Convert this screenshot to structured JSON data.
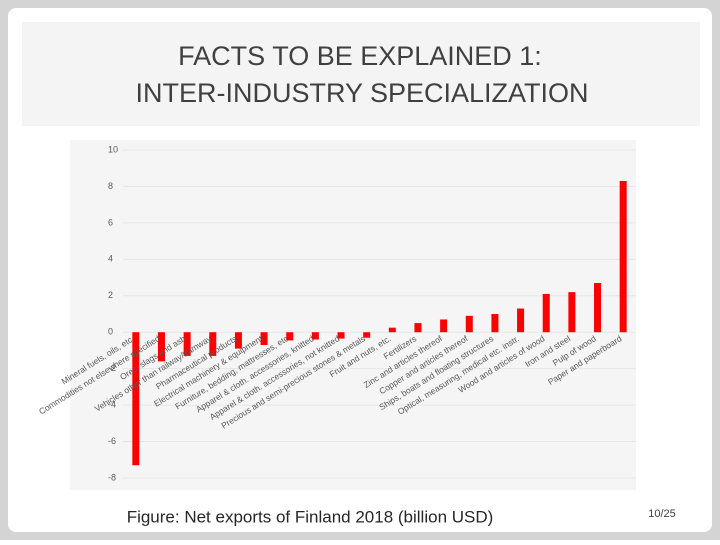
{
  "title": "FACTS TO BE EXPLAINED 1:",
  "subtitle": "INTER-INDUSTRY SPECIALIZATION",
  "caption": "Figure: Net exports of Finland 2018 (billion USD)",
  "page_number": "10/25",
  "chart_data": {
    "type": "bar",
    "color": "#ff0000",
    "grid": true,
    "categories": [
      "Mineral fuels, oils, etc.",
      "Commodities not elsewhere specified",
      "Ores, slags and ash",
      "Vehicles other than railway/tramway",
      "Pharmaceutical products",
      "Electrical machinery & equipment",
      "Furniture, bedding, mattresses, etc",
      "Apparel & cloth. accessories, knitted",
      "Apparel & cloth. accessories, not knitted",
      "Precious and semi-precious stones & metals",
      "Fruit and nuts, etc.",
      "Fertilizers",
      "Zinc and articles thereof",
      "Copper and articles thereof",
      "Ships, boats and floating structures",
      "Optical, measuring, medical etc. instr.",
      "Wood and articles of wood",
      "Iron and steel",
      "Pulp of wood",
      "Paper and paperboard"
    ],
    "values": [
      -7.3,
      -1.6,
      -1.3,
      -1.3,
      -0.9,
      -0.7,
      -0.45,
      -0.4,
      -0.35,
      -0.3,
      0.25,
      0.5,
      0.7,
      0.9,
      1.0,
      1.3,
      2.1,
      2.2,
      2.7,
      8.3
    ],
    "ylim": [
      -8,
      10
    ],
    "yticks": [
      -8,
      -6,
      -4,
      -2,
      0,
      2,
      4,
      6,
      8,
      10
    ]
  }
}
